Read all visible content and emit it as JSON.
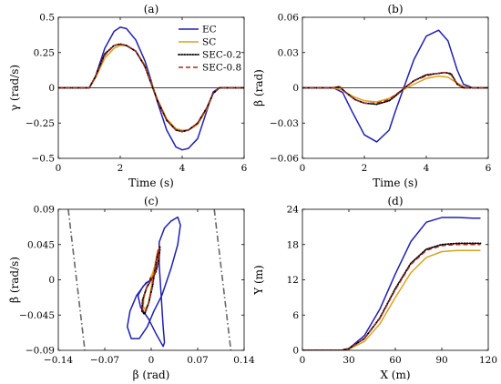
{
  "chart_data": [
    {
      "id": "a",
      "type": "line",
      "title": "(a)",
      "xlabel": "Time (s)",
      "ylabel": "γ (rad/s)",
      "xlim": [
        0,
        6
      ],
      "ylim": [
        -0.5,
        0.5
      ],
      "xticks": [
        0,
        2,
        4,
        6
      ],
      "yticks": [
        -0.5,
        -0.25,
        0,
        0.25,
        0.5
      ],
      "xtick_labels": [
        "0",
        "2",
        "4",
        "6"
      ],
      "ytick_labels": [
        "−0.5",
        "−0.25",
        "0",
        "0.25",
        "0.5"
      ],
      "zero_line": true,
      "legend": {
        "placement": "top-right",
        "entries": [
          {
            "label": "EC",
            "color": "#1f1fb4",
            "style": "solid"
          },
          {
            "label": "SC",
            "color": "#d9a21b",
            "style": "solid"
          },
          {
            "label": "SEC-0.2",
            "color": "#000000",
            "style": "dotted"
          },
          {
            "label": "SEC-0.8",
            "color": "#b22222",
            "style": "dashed"
          }
        ]
      },
      "series": [
        {
          "name": "EC",
          "color": "#1f1fb4",
          "style": "solid",
          "x": [
            0,
            0.5,
            1.0,
            1.2,
            1.5,
            1.8,
            2.0,
            2.2,
            2.5,
            2.8,
            3.0,
            3.2,
            3.5,
            3.8,
            4.0,
            4.2,
            4.5,
            4.8,
            5.0,
            5.2,
            5.5,
            6.0
          ],
          "y": [
            0,
            0,
            0,
            0.08,
            0.28,
            0.4,
            0.43,
            0.42,
            0.34,
            0.19,
            0.05,
            -0.1,
            -0.3,
            -0.42,
            -0.44,
            -0.43,
            -0.36,
            -0.16,
            -0.03,
            0,
            0,
            0
          ]
        },
        {
          "name": "SC",
          "color": "#d9a21b",
          "style": "solid",
          "x": [
            0,
            0.5,
            1.0,
            1.2,
            1.5,
            1.8,
            2.0,
            2.2,
            2.5,
            2.8,
            3.0,
            3.2,
            3.5,
            3.8,
            4.0,
            4.2,
            4.5,
            4.8,
            5.0,
            5.2,
            5.5,
            6.0
          ],
          "y": [
            0,
            0,
            0,
            0.07,
            0.21,
            0.28,
            0.3,
            0.3,
            0.26,
            0.16,
            0.04,
            -0.08,
            -0.22,
            -0.29,
            -0.3,
            -0.3,
            -0.26,
            -0.15,
            -0.04,
            0,
            0,
            0
          ]
        },
        {
          "name": "SEC-0.2",
          "color": "#000000",
          "style": "dotted",
          "x": [
            0,
            0.5,
            1.0,
            1.2,
            1.5,
            1.8,
            2.0,
            2.2,
            2.5,
            2.8,
            3.0,
            3.2,
            3.5,
            3.8,
            4.0,
            4.2,
            4.5,
            4.8,
            5.0,
            5.2,
            5.5,
            6.0
          ],
          "y": [
            0,
            0,
            0,
            0.08,
            0.24,
            0.3,
            0.31,
            0.3,
            0.26,
            0.15,
            0.03,
            -0.09,
            -0.23,
            -0.3,
            -0.31,
            -0.3,
            -0.25,
            -0.14,
            -0.04,
            0,
            0,
            0
          ]
        },
        {
          "name": "SEC-0.8",
          "color": "#b22222",
          "style": "dashed",
          "x": [
            0,
            0.5,
            1.0,
            1.2,
            1.5,
            1.8,
            2.0,
            2.2,
            2.5,
            2.8,
            3.0,
            3.2,
            3.5,
            3.8,
            4.0,
            4.2,
            4.5,
            4.8,
            5.0,
            5.2,
            5.5,
            6.0
          ],
          "y": [
            0,
            0,
            0,
            0.08,
            0.23,
            0.3,
            0.31,
            0.3,
            0.26,
            0.15,
            0.03,
            -0.09,
            -0.23,
            -0.3,
            -0.31,
            -0.3,
            -0.25,
            -0.14,
            -0.04,
            0,
            0,
            0
          ]
        }
      ]
    },
    {
      "id": "b",
      "type": "line",
      "title": "(b)",
      "xlabel": "Time (s)",
      "ylabel": "β (rad)",
      "xlim": [
        0,
        6
      ],
      "ylim": [
        -0.06,
        0.06
      ],
      "xticks": [
        0,
        2,
        4,
        6
      ],
      "yticks": [
        -0.06,
        -0.03,
        0,
        0.03,
        0.06
      ],
      "xtick_labels": [
        "0",
        "2",
        "4",
        "6"
      ],
      "ytick_labels": [
        "−0.06",
        "−0.03",
        "0",
        "0.03",
        "0.06"
      ],
      "zero_line": true,
      "series": [
        {
          "name": "EC",
          "color": "#1f1fb4",
          "style": "solid",
          "x": [
            0,
            0.5,
            1.0,
            1.3,
            1.6,
            2.0,
            2.4,
            2.8,
            3.0,
            3.3,
            3.6,
            4.0,
            4.4,
            4.7,
            5.0,
            5.2,
            5.5,
            6.0
          ],
          "y": [
            0,
            0,
            0,
            -0.004,
            -0.02,
            -0.04,
            -0.046,
            -0.036,
            -0.02,
            0.002,
            0.024,
            0.044,
            0.049,
            0.04,
            0.015,
            0.003,
            0,
            0
          ]
        },
        {
          "name": "SC",
          "color": "#d9a21b",
          "style": "solid",
          "x": [
            0,
            0.5,
            1.0,
            1.3,
            1.6,
            2.0,
            2.4,
            2.8,
            3.0,
            3.3,
            3.6,
            4.0,
            4.4,
            4.7,
            5.0,
            5.2,
            5.5,
            6.0
          ],
          "y": [
            0,
            0,
            0,
            -0.002,
            -0.007,
            -0.011,
            -0.012,
            -0.009,
            -0.006,
            -0.001,
            0.003,
            0.008,
            0.01,
            0.009,
            0.004,
            0.001,
            0,
            0
          ]
        },
        {
          "name": "SEC-0.2",
          "color": "#000000",
          "style": "dotted",
          "x": [
            0,
            0.5,
            1.0,
            1.2,
            1.4,
            1.7,
            2.0,
            2.4,
            2.8,
            3.0,
            3.3,
            3.6,
            4.0,
            4.3,
            4.6,
            4.8,
            5.0,
            5.2,
            5.5,
            6.0
          ],
          "y": [
            0,
            0,
            0,
            0.001,
            -0.004,
            -0.01,
            -0.013,
            -0.014,
            -0.011,
            -0.007,
            0,
            0.006,
            0.011,
            0.012,
            0.013,
            0.012,
            0.003,
            0,
            0,
            0
          ]
        },
        {
          "name": "SEC-0.8",
          "color": "#b22222",
          "style": "dashed",
          "x": [
            0,
            0.5,
            1.0,
            1.2,
            1.4,
            1.7,
            2.0,
            2.4,
            2.8,
            3.0,
            3.3,
            3.6,
            4.0,
            4.3,
            4.6,
            4.8,
            5.0,
            5.2,
            5.5,
            6.0
          ],
          "y": [
            0,
            0,
            0,
            0.001,
            -0.004,
            -0.01,
            -0.013,
            -0.013,
            -0.01,
            -0.006,
            0,
            0.006,
            0.01,
            0.012,
            0.013,
            0.011,
            0.003,
            0,
            0,
            0
          ]
        }
      ]
    },
    {
      "id": "c",
      "type": "line",
      "title": "(c)",
      "xlabel": "β (rad)",
      "ylabel": "β̇ (rad/s)",
      "xlim": [
        -0.14,
        0.14
      ],
      "ylim": [
        -0.09,
        0.09
      ],
      "xticks": [
        -0.14,
        -0.07,
        0,
        0.07,
        0.14
      ],
      "yticks": [
        -0.09,
        -0.045,
        0,
        0.045,
        0.09
      ],
      "xtick_labels": [
        "−0.14",
        "−0.07",
        "0",
        "0.07",
        "0.14"
      ],
      "ytick_labels": [
        "−0.09",
        "−0.045",
        "0",
        "0.045",
        "0.09"
      ],
      "zero_line": false,
      "series": [
        {
          "name": "",
          "color": "#666666",
          "style": "dashdot",
          "x": [
            -0.125,
            -0.1
          ],
          "y": [
            0.09,
            -0.09
          ]
        },
        {
          "name": "",
          "color": "#666666",
          "style": "dashdot",
          "x": [
            0.095,
            0.12
          ],
          "y": [
            0.09,
            -0.09
          ]
        },
        {
          "name": "EC",
          "color": "#1f1fb4",
          "style": "solid",
          "x": [
            0,
            -0.008,
            -0.022,
            -0.032,
            -0.036,
            -0.03,
            -0.018,
            -0.006,
            0.004,
            0.016,
            0.03,
            0.04,
            0.044,
            0.04,
            0.03,
            0.02,
            0.012,
            0.012,
            0.015,
            0.018,
            0.02,
            0.018,
            0.008,
            -0.004,
            -0.016,
            -0.02,
            -0.012,
            -0.004,
            0
          ],
          "y": [
            0,
            -0.004,
            -0.02,
            -0.04,
            -0.06,
            -0.075,
            -0.075,
            -0.06,
            -0.04,
            -0.02,
            0.015,
            0.045,
            0.07,
            0.08,
            0.075,
            0.066,
            0.048,
            0.02,
            -0.02,
            -0.06,
            -0.08,
            -0.085,
            -0.07,
            -0.05,
            -0.035,
            -0.02,
            -0.008,
            -0.002,
            0
          ]
        },
        {
          "name": "SC",
          "color": "#d9a21b",
          "style": "solid",
          "x": [
            0,
            -0.006,
            -0.011,
            -0.012,
            -0.009,
            -0.004,
            0,
            0.004,
            0.008,
            0.01,
            0.009,
            0.006,
            0.002,
            -0.002,
            0
          ],
          "y": [
            0,
            -0.008,
            -0.022,
            -0.034,
            -0.038,
            -0.03,
            -0.01,
            0.012,
            0.03,
            0.038,
            0.034,
            0.02,
            0.008,
            0.002,
            0
          ]
        },
        {
          "name": "SEC-0.2",
          "color": "#000000",
          "style": "dotted",
          "x": [
            0,
            -0.007,
            -0.013,
            -0.014,
            -0.01,
            -0.004,
            0.002,
            0.006,
            0.01,
            0.013,
            0.013,
            0.011,
            0.007,
            0.002,
            -0.002,
            0
          ],
          "y": [
            0,
            -0.01,
            -0.026,
            -0.04,
            -0.044,
            -0.03,
            -0.008,
            0.015,
            0.034,
            0.042,
            0.038,
            0.024,
            0.01,
            0.003,
            0.001,
            0
          ]
        },
        {
          "name": "SEC-0.8",
          "color": "#b22222",
          "style": "dashed",
          "x": [
            0,
            -0.007,
            -0.012,
            -0.013,
            -0.009,
            -0.003,
            0.002,
            0.006,
            0.01,
            0.012,
            0.012,
            0.01,
            0.006,
            0.002,
            -0.002,
            0
          ],
          "y": [
            0,
            -0.01,
            -0.025,
            -0.038,
            -0.042,
            -0.028,
            -0.006,
            0.016,
            0.033,
            0.041,
            0.036,
            0.022,
            0.009,
            0.003,
            0.001,
            0
          ]
        }
      ]
    },
    {
      "id": "d",
      "type": "line",
      "title": "(d)",
      "xlabel": "X (m)",
      "ylabel": "Y (m)",
      "xlim": [
        0,
        120
      ],
      "ylim": [
        0,
        24
      ],
      "xticks": [
        0,
        30,
        60,
        90,
        120
      ],
      "yticks": [
        0,
        6,
        12,
        18,
        24
      ],
      "xtick_labels": [
        "0",
        "30",
        "60",
        "90",
        "120"
      ],
      "ytick_labels": [
        "0",
        "6",
        "12",
        "18",
        "24"
      ],
      "zero_line": false,
      "series": [
        {
          "name": "EC",
          "color": "#1f1fb4",
          "style": "solid",
          "x": [
            0,
            25,
            30,
            40,
            50,
            60,
            70,
            80,
            90,
            100,
            110,
            115
          ],
          "y": [
            0,
            0,
            0.3,
            2.5,
            7.0,
            13.0,
            18.5,
            21.8,
            22.6,
            22.6,
            22.5,
            22.5
          ]
        },
        {
          "name": "SC",
          "color": "#d9a21b",
          "style": "solid",
          "x": [
            0,
            25,
            30,
            40,
            50,
            60,
            70,
            80,
            90,
            100,
            110,
            115
          ],
          "y": [
            0,
            0,
            0.2,
            1.5,
            4.5,
            9.0,
            13.2,
            15.8,
            16.8,
            17.0,
            17.0,
            17.0
          ]
        },
        {
          "name": "SEC-0.2",
          "color": "#000000",
          "style": "dotted",
          "x": [
            0,
            25,
            30,
            40,
            50,
            60,
            70,
            80,
            90,
            100,
            110,
            115
          ],
          "y": [
            0,
            0,
            0.3,
            2.0,
            5.5,
            10.5,
            14.8,
            17.2,
            18.0,
            18.2,
            18.2,
            18.2
          ]
        },
        {
          "name": "SEC-0.8",
          "color": "#b22222",
          "style": "dashed",
          "x": [
            0,
            25,
            30,
            40,
            50,
            60,
            70,
            80,
            90,
            100,
            110,
            115
          ],
          "y": [
            0,
            0,
            0.3,
            2.0,
            5.4,
            10.3,
            14.6,
            17.0,
            17.8,
            18.0,
            18.0,
            18.0
          ]
        }
      ]
    }
  ]
}
